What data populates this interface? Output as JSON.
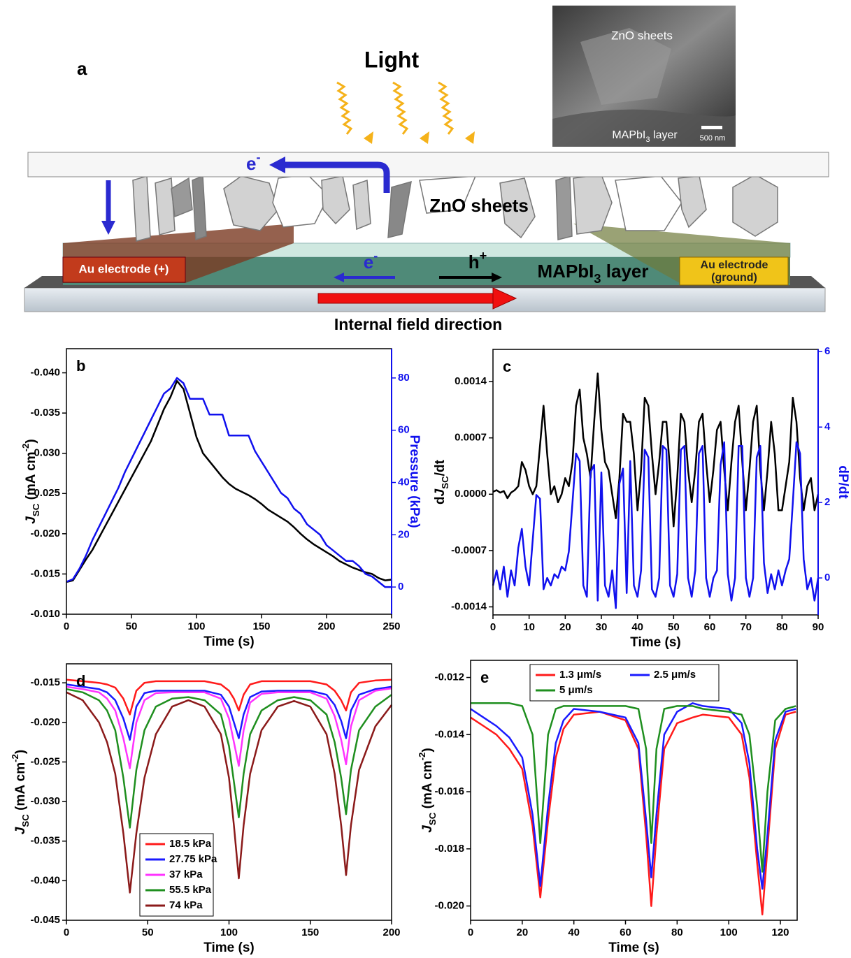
{
  "diagram": {
    "panel_label": "a",
    "light": "Light",
    "inset_top": "ZnO sheets",
    "inset_bottom": [
      {
        "text": "MAPbI"
      },
      {
        "text": "3",
        "style": "sub"
      },
      {
        "text": " layer"
      }
    ],
    "scale_bar": "500 nm",
    "electron_top": [
      {
        "text": "e"
      },
      {
        "text": "-",
        "style": "sup"
      }
    ],
    "zno": "ZnO sheets",
    "left_electrode": "Au electrode (+)",
    "electron_layer": [
      {
        "text": "e"
      },
      {
        "text": "-",
        "style": "sup"
      }
    ],
    "hole": [
      {
        "text": "h"
      },
      {
        "text": "+",
        "style": "sup"
      }
    ],
    "layer": [
      {
        "text": "MAPbI"
      },
      {
        "text": "3",
        "style": "sub"
      },
      {
        "text": " layer"
      }
    ],
    "right_electrode": "Au electrode",
    "right_electrode_note": "(ground)",
    "field": "Internal field direction"
  },
  "chart_data": [
    {
      "type": "line",
      "label": "b",
      "x": [
        0,
        5,
        10,
        15,
        20,
        25,
        30,
        35,
        40,
        45,
        50,
        55,
        60,
        65,
        70,
        75,
        80,
        85,
        90,
        95,
        100,
        105,
        110,
        115,
        120,
        125,
        130,
        135,
        140,
        145,
        150,
        155,
        160,
        165,
        170,
        175,
        180,
        185,
        190,
        195,
        200,
        205,
        210,
        215,
        220,
        225,
        230,
        235,
        240,
        245,
        250
      ],
      "series": [
        {
          "color": "#000000",
          "values": [
            -0.014,
            -0.0142,
            -0.0155,
            -0.0168,
            -0.018,
            -0.0195,
            -0.021,
            -0.0225,
            -0.024,
            -0.0255,
            -0.027,
            -0.0285,
            -0.03,
            -0.0315,
            -0.0335,
            -0.0355,
            -0.037,
            -0.039,
            -0.038,
            -0.035,
            -0.032,
            -0.03,
            -0.029,
            -0.028,
            -0.027,
            -0.0262,
            -0.0256,
            -0.0252,
            -0.0248,
            -0.0243,
            -0.0237,
            -0.023,
            -0.0225,
            -0.022,
            -0.0215,
            -0.0208,
            -0.02,
            -0.0193,
            -0.0187,
            -0.0182,
            -0.0177,
            -0.0172,
            -0.0166,
            -0.0162,
            -0.0158,
            -0.0155,
            -0.0152,
            -0.015,
            -0.0145,
            -0.0142,
            -0.0143
          ]
        },
        {
          "color": "#1010ee",
          "axis": "y2",
          "values": [
            2,
            3,
            7,
            12,
            18,
            23,
            28,
            33,
            38,
            44,
            49,
            54,
            59,
            64,
            69,
            74,
            76,
            80,
            78,
            72,
            72,
            72,
            66,
            66,
            66,
            58,
            58,
            58,
            58,
            52,
            48,
            44,
            40,
            36,
            34,
            30,
            28,
            24,
            22,
            20,
            16,
            14,
            12,
            10,
            10,
            8,
            5,
            4,
            2,
            0,
            0
          ]
        }
      ],
      "xlim": [
        0,
        250
      ],
      "xticks": [
        0,
        50,
        100,
        150,
        200,
        250
      ],
      "ylim": [
        -0.01,
        -0.043
      ],
      "yticks": [
        {
          "value": -0.01,
          "label": "-0.010"
        },
        -0.015,
        {
          "value": -0.02,
          "label": "-0.020"
        },
        -0.025,
        {
          "value": -0.03,
          "label": "-0.030"
        },
        -0.035,
        {
          "value": -0.04,
          "label": "-0.040"
        }
      ],
      "y2lim": [
        -10.4,
        91.2
      ],
      "y2ticks": [
        0,
        20,
        40,
        60,
        80
      ],
      "y2color": "#1010ee",
      "xlabel": "Time (s)",
      "ylabel": [
        {
          "text": "J",
          "style": "italic"
        },
        {
          "text": "SC",
          "style": "sub"
        },
        {
          "text": " (mA cm"
        },
        {
          "text": "-2",
          "style": "sup"
        },
        {
          "text": ")"
        }
      ],
      "y2label": "Pressure (kPa)"
    },
    {
      "type": "line",
      "label": "c",
      "x": [
        0,
        1,
        2,
        3,
        4,
        5,
        6,
        7,
        8,
        9,
        10,
        11,
        12,
        13,
        14,
        15,
        16,
        17,
        18,
        19,
        20,
        21,
        22,
        23,
        24,
        25,
        26,
        27,
        28,
        29,
        30,
        31,
        32,
        33,
        34,
        35,
        36,
        37,
        38,
        39,
        40,
        41,
        42,
        43,
        44,
        45,
        46,
        47,
        48,
        49,
        50,
        51,
        52,
        53,
        54,
        55,
        56,
        57,
        58,
        59,
        60,
        61,
        62,
        63,
        64,
        65,
        66,
        67,
        68,
        69,
        70,
        71,
        72,
        73,
        74,
        75,
        76,
        77,
        78,
        79,
        80,
        81,
        82,
        83,
        84,
        85,
        86,
        87,
        88,
        89,
        90
      ],
      "series": [
        {
          "color": "#000000",
          "values": [
            3e-05,
            5e-05,
            2e-05,
            4e-05,
            -5e-05,
            2e-05,
            5e-05,
            0.0001,
            0.0004,
            0.0003,
            0.0001,
            0.0,
            0.0001,
            0.0006,
            0.0011,
            0.0005,
            0.0,
            0.0001,
            -0.0001,
            0.0,
            0.0002,
            0.0001,
            0.0004,
            0.0011,
            0.0013,
            0.0007,
            0.0005,
            0.0002,
            0.0009,
            0.0015,
            0.0008,
            0.0004,
            0.0003,
            0.0,
            -0.0003,
            0.0002,
            0.001,
            0.0009,
            0.0009,
            0.0005,
            -0.0002,
            0.0003,
            0.0012,
            0.0011,
            0.0005,
            0.0,
            0.0004,
            0.0009,
            0.0009,
            0.0003,
            -0.0004,
            0.0002,
            0.001,
            0.0009,
            0.0003,
            -0.0001,
            0.0003,
            0.0009,
            0.001,
            0.0004,
            -0.0001,
            0.0003,
            0.0008,
            0.0009,
            0.0003,
            -0.0002,
            0.0004,
            0.0009,
            0.0011,
            0.0004,
            -0.0002,
            0.0003,
            0.0009,
            0.0011,
            0.0003,
            -0.0002,
            0.0003,
            0.0009,
            0.0005,
            -0.0002,
            -0.0002,
            0.0001,
            0.0004,
            0.0012,
            0.0009,
            0.0002,
            -0.0002,
            0.0001,
            0.0002,
            -0.0002,
            0.0
          ]
        },
        {
          "color": "#1010ee",
          "axis": "y2",
          "values": [
            -0.2,
            0.2,
            -0.3,
            0.3,
            -0.5,
            0.2,
            -0.2,
            0.8,
            1.3,
            0.3,
            -0.2,
            1.0,
            2.2,
            2.1,
            -0.3,
            0.0,
            -0.2,
            0.1,
            0.0,
            0.3,
            0.2,
            0.7,
            2.0,
            3.3,
            3.1,
            -0.2,
            -0.5,
            2.8,
            3.0,
            -0.6,
            2.8,
            -0.2,
            -0.5,
            0.2,
            -0.8,
            2.5,
            2.9,
            -0.4,
            3.1,
            -0.2,
            -0.5,
            0.2,
            3.4,
            3.2,
            -0.3,
            -0.5,
            0.0,
            3.5,
            3.4,
            -0.2,
            -0.5,
            0.1,
            3.4,
            3.5,
            0.0,
            -0.5,
            0.2,
            3.3,
            3.5,
            0.0,
            -0.5,
            0.0,
            0.2,
            3.0,
            3.6,
            0.1,
            -0.6,
            0.0,
            3.5,
            3.5,
            0.0,
            -0.5,
            0.0,
            3.2,
            3.5,
            0.4,
            -0.4,
            0.1,
            -0.3,
            0.2,
            -0.2,
            0.2,
            0.5,
            2.0,
            3.6,
            3.3,
            0.5,
            -0.3,
            0.0,
            -0.6,
            0.0
          ]
        }
      ],
      "xlim": [
        0,
        90
      ],
      "xticks": [
        0,
        10,
        20,
        30,
        40,
        50,
        60,
        70,
        80,
        90
      ],
      "ylim": [
        -0.0015,
        0.0018
      ],
      "yticks": [
        -0.0014,
        -0.0007,
        {
          "value": 0,
          "label": "0.0000"
        },
        0.0007,
        0.0014
      ],
      "y2lim": [
        -0.98,
        6.06
      ],
      "y2ticks": [
        0,
        2,
        4,
        6
      ],
      "y2color": "#1010ee",
      "xlabel": "Time (s)",
      "ylabel": [
        {
          "text": "d"
        },
        {
          "text": "J",
          "style": "italic"
        },
        {
          "text": "SC",
          "style": "sub"
        },
        {
          "text": "/dt"
        }
      ],
      "y2label": "dP/dt"
    },
    {
      "type": "line",
      "label": "d",
      "legend": "lower left",
      "x": [
        0,
        10,
        20,
        25,
        30,
        35,
        39,
        43,
        48,
        55,
        65,
        75,
        85,
        95,
        100,
        103,
        106,
        109,
        113,
        120,
        130,
        140,
        150,
        160,
        165,
        169,
        172,
        175,
        180,
        190,
        200
      ],
      "series": [
        {
          "name": "18.5 kPa",
          "color": "#ff1a1a",
          "values": [
            -0.0146,
            -0.0148,
            -0.015,
            -0.0152,
            -0.0156,
            -0.017,
            -0.019,
            -0.016,
            -0.015,
            -0.0148,
            -0.0148,
            -0.0148,
            -0.0148,
            -0.0152,
            -0.016,
            -0.017,
            -0.0185,
            -0.0165,
            -0.0152,
            -0.0148,
            -0.0148,
            -0.0148,
            -0.0148,
            -0.0152,
            -0.016,
            -0.0172,
            -0.0185,
            -0.0162,
            -0.015,
            -0.0147,
            -0.0146
          ]
        },
        {
          "name": "27.75 kPa",
          "color": "#1a1aff",
          "values": [
            -0.0152,
            -0.0155,
            -0.0158,
            -0.0162,
            -0.0172,
            -0.0195,
            -0.0222,
            -0.018,
            -0.0163,
            -0.016,
            -0.016,
            -0.016,
            -0.016,
            -0.0165,
            -0.018,
            -0.02,
            -0.022,
            -0.019,
            -0.0168,
            -0.0161,
            -0.016,
            -0.016,
            -0.016,
            -0.0165,
            -0.0178,
            -0.0198,
            -0.022,
            -0.0185,
            -0.0165,
            -0.0158,
            -0.0155
          ]
        },
        {
          "name": "37 kPa",
          "color": "#ff33ff",
          "values": [
            -0.0155,
            -0.0158,
            -0.0162,
            -0.017,
            -0.0185,
            -0.022,
            -0.0258,
            -0.02,
            -0.0172,
            -0.0163,
            -0.0162,
            -0.0162,
            -0.0162,
            -0.017,
            -0.0195,
            -0.0225,
            -0.0255,
            -0.021,
            -0.0175,
            -0.0164,
            -0.0162,
            -0.0162,
            -0.0162,
            -0.017,
            -0.0192,
            -0.0222,
            -0.0253,
            -0.0205,
            -0.0172,
            -0.016,
            -0.0157
          ]
        },
        {
          "name": "55.5 kPa",
          "color": "#1f8f1f",
          "values": [
            -0.0158,
            -0.0162,
            -0.0172,
            -0.0185,
            -0.021,
            -0.027,
            -0.0333,
            -0.026,
            -0.021,
            -0.018,
            -0.017,
            -0.0168,
            -0.0172,
            -0.019,
            -0.023,
            -0.0275,
            -0.032,
            -0.0265,
            -0.0215,
            -0.0185,
            -0.0172,
            -0.0168,
            -0.0172,
            -0.019,
            -0.0225,
            -0.027,
            -0.0316,
            -0.026,
            -0.021,
            -0.018,
            -0.0165
          ]
        },
        {
          "name": "74 kPa",
          "color": "#8b1a1a",
          "values": [
            -0.0162,
            -0.0172,
            -0.02,
            -0.0225,
            -0.0265,
            -0.034,
            -0.0415,
            -0.034,
            -0.027,
            -0.0215,
            -0.018,
            -0.0172,
            -0.018,
            -0.0215,
            -0.027,
            -0.033,
            -0.0397,
            -0.033,
            -0.0265,
            -0.021,
            -0.018,
            -0.0173,
            -0.018,
            -0.0215,
            -0.0265,
            -0.033,
            -0.0393,
            -0.033,
            -0.026,
            -0.0205,
            -0.0178
          ]
        }
      ],
      "xlim": [
        0,
        200
      ],
      "xticks": [
        0,
        50,
        100,
        150,
        200
      ],
      "ylim": [
        -0.045,
        -0.0126
      ],
      "yticks": [
        -0.045,
        {
          "value": -0.04,
          "label": "-0.040"
        },
        -0.035,
        {
          "value": -0.03,
          "label": "-0.030"
        },
        -0.025,
        {
          "value": -0.02,
          "label": "-0.020"
        },
        -0.015
      ],
      "xlabel": "Time (s)",
      "ylabel": [
        {
          "text": "J",
          "style": "italic"
        },
        {
          "text": "SC",
          "style": "sub"
        },
        {
          "text": " (mA cm"
        },
        {
          "text": "-2",
          "style": "sup"
        },
        {
          "text": ")"
        }
      ]
    },
    {
      "type": "line",
      "label": "e",
      "legend": "upper left",
      "x": [
        0,
        5,
        10,
        15,
        20,
        24,
        27,
        30,
        33,
        36,
        40,
        50,
        60,
        65,
        68,
        70,
        72,
        75,
        80,
        86,
        90,
        100,
        105,
        108,
        111,
        113,
        115,
        118,
        122,
        126
      ],
      "series": [
        {
          "name": "1.3 μm/s",
          "color": "#ff1a1a",
          "values": [
            -0.0134,
            -0.0137,
            -0.014,
            -0.0145,
            -0.0152,
            -0.0172,
            -0.0197,
            -0.017,
            -0.0148,
            -0.0138,
            -0.0133,
            -0.0132,
            -0.0135,
            -0.0145,
            -0.0175,
            -0.02,
            -0.0175,
            -0.0145,
            -0.0136,
            -0.0134,
            -0.0133,
            -0.0134,
            -0.014,
            -0.0155,
            -0.0185,
            -0.0203,
            -0.018,
            -0.0145,
            -0.0133,
            -0.0132
          ]
        },
        {
          "name": "2.5 μm/s",
          "color": "#1a1aff",
          "values": [
            -0.0131,
            -0.0134,
            -0.0137,
            -0.0141,
            -0.0148,
            -0.0168,
            -0.0193,
            -0.0165,
            -0.0143,
            -0.0135,
            -0.0131,
            -0.0132,
            -0.0134,
            -0.0143,
            -0.017,
            -0.019,
            -0.0168,
            -0.014,
            -0.0132,
            -0.0129,
            -0.013,
            -0.0131,
            -0.0136,
            -0.015,
            -0.018,
            -0.0194,
            -0.0175,
            -0.0142,
            -0.0132,
            -0.0131
          ]
        },
        {
          "name": "5 μm/s",
          "color": "#1f8f1f",
          "values": [
            -0.0129,
            -0.0129,
            -0.0129,
            -0.0129,
            -0.013,
            -0.014,
            -0.0178,
            -0.014,
            -0.0131,
            -0.013,
            -0.013,
            -0.013,
            -0.013,
            -0.0131,
            -0.0145,
            -0.0178,
            -0.0145,
            -0.0131,
            -0.013,
            -0.013,
            -0.0131,
            -0.0132,
            -0.0133,
            -0.014,
            -0.0165,
            -0.0188,
            -0.016,
            -0.0135,
            -0.0131,
            -0.013
          ]
        }
      ],
      "xlim": [
        0,
        126.5
      ],
      "xticks": [
        0,
        20,
        40,
        60,
        80,
        100,
        120
      ],
      "ylim": [
        -0.0205,
        -0.0114
      ],
      "yticks": [
        {
          "value": -0.02,
          "label": "-0.020"
        },
        -0.018,
        -0.016,
        -0.014,
        -0.012
      ],
      "xlabel": "Time (s)",
      "ylabel": [
        {
          "text": "J",
          "style": "italic"
        },
        {
          "text": "SC",
          "style": "sub"
        },
        {
          "text": " (mA cm"
        },
        {
          "text": "-2",
          "style": "sup"
        },
        {
          "text": ")"
        }
      ]
    }
  ]
}
